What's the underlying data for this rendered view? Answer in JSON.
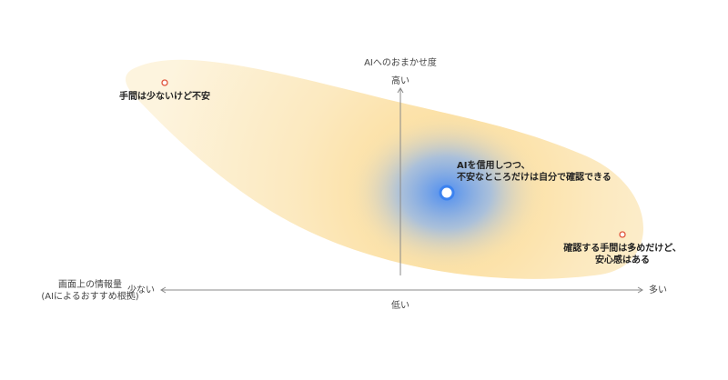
{
  "axes": {
    "y_title": "AIへのおまかせ度",
    "y_high": "高い",
    "y_low": "低い",
    "x_low": "少ない",
    "x_high": "多い",
    "x_title": [
      "画面上の情報量",
      "(AIによるおすすめ根拠)"
    ]
  },
  "points": [
    {
      "label": [
        "手間は少ないけど不安"
      ]
    },
    {
      "label": [
        "AIを信用しつつ、",
        "不安なところだけは自分で確認できる"
      ]
    },
    {
      "label": [
        "確認する手間は多めだけど、",
        "安心感はある"
      ]
    }
  ]
}
